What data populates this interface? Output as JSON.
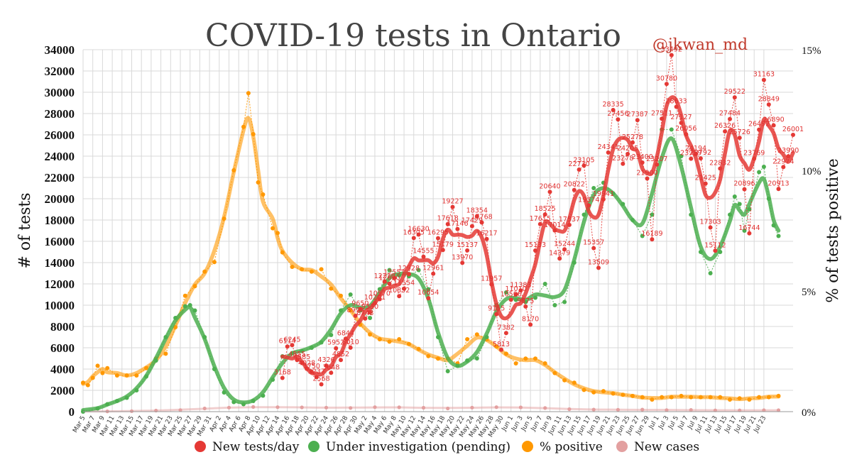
{
  "chart_data": {
    "type": "line",
    "title": "COVID-19 tests in Ontario",
    "subtitle": "@jkwan_md",
    "ylabel": "# of tests",
    "y2label": "% of tests positive",
    "ylim": [
      0,
      34000
    ],
    "y2lim": [
      0,
      15
    ],
    "yticks": [
      0,
      2000,
      4000,
      6000,
      8000,
      10000,
      12000,
      14000,
      16000,
      18000,
      20000,
      22000,
      24000,
      26000,
      28000,
      30000,
      32000,
      34000
    ],
    "y2ticks": [
      {
        "value": 0,
        "label": "0%"
      },
      {
        "value": 5,
        "label": "5%"
      },
      {
        "value": 10,
        "label": "10%"
      },
      {
        "value": 15,
        "label": "15%"
      }
    ],
    "grid": true,
    "legend_position": "bottom",
    "x_tick_labels": [
      "Mar 5",
      "Mar 7",
      "Mar 9",
      "Mar 11",
      "Mar 13",
      "Mar 15",
      "Mar 17",
      "Mar 19",
      "Mar 21",
      "Mar 23",
      "Mar 25",
      "Mar 27",
      "Mar 29",
      "Mar 31",
      "Apr 2",
      "Apr 4",
      "Apr 6",
      "Apr 8",
      "Apr 10",
      "Apr 12",
      "Apr 14",
      "Apr 16",
      "Apr 18",
      "Apr 20",
      "Apr 22",
      "Apr 24",
      "Apr 26",
      "Apr 28",
      "Apr 30",
      "May 2",
      "May 4",
      "May 6",
      "May 8",
      "May 10",
      "May 12",
      "May 14",
      "May 16",
      "May 18",
      "May 20",
      "May 22",
      "May 24",
      "May 26",
      "May 28",
      "May 30",
      "Jun 1",
      "Jun 3",
      "Jun 5",
      "Jun 7",
      "Jun 9",
      "Jun 11",
      "Jun 13",
      "Jun 15",
      "Jun 17",
      "Jun 19",
      "Jun 21",
      "Jun 23",
      "Jun 25",
      "Jun 27",
      "Jun 29",
      "Jul 1",
      "Jul 3",
      "Jul 5",
      "Jul 7",
      "Jul 9",
      "Jul 11",
      "Jul 13",
      "Jul 15",
      "Jul 17",
      "Jul 19",
      "Jul 21",
      "Jul 23"
    ],
    "series": [
      {
        "name": "New tests/day",
        "color": "#e53935",
        "axis": "left",
        "points": [
          [
            46,
            3168
          ],
          [
            47,
            6114
          ],
          [
            48,
            6245
          ],
          [
            49,
            4855
          ],
          [
            50,
            4585
          ],
          [
            51,
            4028
          ],
          [
            52,
            3750
          ],
          [
            53,
            3237
          ],
          [
            54,
            2568
          ],
          [
            55,
            4326
          ],
          [
            56,
            3648
          ],
          [
            57,
            5952
          ],
          [
            58,
            4852
          ],
          [
            59,
            6844
          ],
          [
            60,
            6010
          ],
          [
            61,
            8999
          ],
          [
            62,
            9650
          ],
          [
            63,
            8743
          ],
          [
            64,
            9330
          ],
          [
            65,
            10201
          ],
          [
            66,
            10570
          ],
          [
            67,
            12210
          ],
          [
            68,
            12020
          ],
          [
            69,
            12551
          ],
          [
            70,
            10852
          ],
          [
            71,
            11554
          ],
          [
            72,
            12928
          ],
          [
            73,
            16305
          ],
          [
            74,
            16630
          ],
          [
            75,
            14555
          ],
          [
            76,
            10654
          ],
          [
            77,
            12961
          ],
          [
            78,
            16295
          ],
          [
            79,
            15179
          ],
          [
            80,
            17618
          ],
          [
            81,
            19227
          ],
          [
            82,
            17146
          ],
          [
            83,
            13970
          ],
          [
            84,
            15137
          ],
          [
            85,
            17429
          ],
          [
            86,
            18354
          ],
          [
            87,
            17768
          ],
          [
            88,
            16217
          ],
          [
            89,
            11957
          ],
          [
            90,
            9155
          ],
          [
            91,
            5813
          ],
          [
            92,
            7382
          ],
          [
            93,
            10506
          ],
          [
            94,
            11010
          ],
          [
            95,
            11383
          ],
          [
            96,
            9875
          ],
          [
            97,
            8170
          ],
          [
            98,
            15133
          ],
          [
            99,
            17615
          ],
          [
            100,
            18525
          ],
          [
            101,
            20640
          ],
          [
            102,
            17014
          ],
          [
            103,
            14379
          ],
          [
            104,
            15244
          ],
          [
            105,
            17537
          ],
          [
            106,
            20822
          ],
          [
            107,
            22730
          ],
          [
            108,
            23105
          ],
          [
            109,
            19374
          ],
          [
            110,
            15357
          ],
          [
            111,
            13509
          ],
          [
            112,
            19941
          ],
          [
            113,
            24341
          ],
          [
            114,
            28335
          ],
          [
            115,
            27456
          ],
          [
            116,
            23278
          ],
          [
            117,
            24205
          ],
          [
            118,
            25278
          ],
          [
            119,
            27387
          ],
          [
            120,
            23400
          ],
          [
            121,
            21900
          ],
          [
            122,
            16189
          ],
          [
            123,
            23207
          ],
          [
            124,
            27511
          ],
          [
            125,
            30780
          ],
          [
            126,
            33492
          ],
          [
            127,
            28633
          ],
          [
            128,
            27127
          ],
          [
            129,
            26056
          ],
          [
            130,
            23759
          ],
          [
            131,
            24194
          ],
          [
            132,
            23792
          ],
          [
            133,
            21425
          ],
          [
            134,
            17303
          ],
          [
            135,
            15112
          ],
          [
            136,
            22832
          ],
          [
            137,
            26326
          ],
          [
            138,
            27484
          ],
          [
            139,
            29522
          ],
          [
            140,
            25726
          ],
          [
            141,
            20896
          ],
          [
            142,
            16744
          ],
          [
            143,
            23769
          ],
          [
            144,
            26492
          ],
          [
            145,
            31163
          ],
          [
            146,
            28849
          ],
          [
            147,
            26890
          ],
          [
            148,
            20913
          ],
          [
            149,
            22974
          ],
          [
            150,
            23990
          ],
          [
            151,
            26001
          ]
        ]
      },
      {
        "name": "Under investigation (pending)",
        "color": "#4caf50",
        "axis": "left",
        "points": [
          [
            5,
            0
          ],
          [
            8,
            300
          ],
          [
            10,
            700
          ],
          [
            12,
            1000
          ],
          [
            14,
            1300
          ],
          [
            16,
            2000
          ],
          [
            18,
            3300
          ],
          [
            20,
            4800
          ],
          [
            22,
            7000
          ],
          [
            24,
            8800
          ],
          [
            26,
            9900
          ],
          [
            27,
            10000
          ],
          [
            28,
            9500
          ],
          [
            30,
            7000
          ],
          [
            32,
            4000
          ],
          [
            34,
            1800
          ],
          [
            36,
            900
          ],
          [
            38,
            700
          ],
          [
            40,
            1000
          ],
          [
            42,
            1500
          ],
          [
            44,
            3000
          ],
          [
            46,
            5200
          ],
          [
            48,
            5500
          ],
          [
            50,
            5700
          ],
          [
            52,
            6000
          ],
          [
            54,
            6500
          ],
          [
            56,
            7200
          ],
          [
            58,
            9500
          ],
          [
            60,
            11000
          ],
          [
            62,
            9500
          ],
          [
            64,
            8800
          ],
          [
            66,
            11500
          ],
          [
            68,
            13300
          ],
          [
            70,
            12800
          ],
          [
            72,
            12700
          ],
          [
            74,
            13300
          ],
          [
            76,
            11500
          ],
          [
            78,
            7000
          ],
          [
            80,
            3800
          ],
          [
            82,
            4300
          ],
          [
            84,
            4800
          ],
          [
            86,
            5000
          ],
          [
            88,
            7000
          ],
          [
            90,
            10000
          ],
          [
            92,
            11200
          ],
          [
            94,
            10500
          ],
          [
            96,
            10300
          ],
          [
            98,
            10700
          ],
          [
            100,
            12000
          ],
          [
            102,
            10000
          ],
          [
            104,
            10300
          ],
          [
            106,
            14000
          ],
          [
            108,
            18500
          ],
          [
            110,
            21000
          ],
          [
            112,
            21500
          ],
          [
            114,
            20500
          ],
          [
            116,
            19500
          ],
          [
            118,
            18000
          ],
          [
            120,
            16500
          ],
          [
            122,
            18500
          ],
          [
            124,
            26500
          ],
          [
            126,
            26500
          ],
          [
            128,
            24000
          ],
          [
            130,
            18500
          ],
          [
            132,
            15000
          ],
          [
            134,
            13000
          ],
          [
            136,
            15000
          ],
          [
            138,
            18500
          ],
          [
            139,
            20200
          ],
          [
            140,
            19500
          ],
          [
            141,
            17000
          ],
          [
            142,
            19000
          ],
          [
            144,
            22500
          ],
          [
            145,
            23000
          ],
          [
            146,
            20000
          ],
          [
            147,
            17500
          ],
          [
            148,
            16500
          ]
        ]
      },
      {
        "name": "% positive",
        "color": "#ff9800",
        "axis": "right",
        "points": [
          [
            5,
            1.2
          ],
          [
            6,
            1.1
          ],
          [
            7,
            1.4
          ],
          [
            8,
            1.9
          ],
          [
            9,
            1.6
          ],
          [
            10,
            1.8
          ],
          [
            12,
            1.5
          ],
          [
            14,
            1.5
          ],
          [
            16,
            1.5
          ],
          [
            18,
            1.8
          ],
          [
            20,
            2.2
          ],
          [
            22,
            2.4
          ],
          [
            24,
            3.5
          ],
          [
            26,
            4.8
          ],
          [
            28,
            5.2
          ],
          [
            30,
            5.8
          ],
          [
            32,
            6.2
          ],
          [
            34,
            8.0
          ],
          [
            36,
            10.0
          ],
          [
            38,
            11.8
          ],
          [
            39,
            13.2
          ],
          [
            40,
            11.5
          ],
          [
            41,
            9.5
          ],
          [
            42,
            9.0
          ],
          [
            44,
            7.6
          ],
          [
            45,
            7.4
          ],
          [
            46,
            6.6
          ],
          [
            48,
            6.0
          ],
          [
            50,
            5.9
          ],
          [
            52,
            5.8
          ],
          [
            54,
            5.9
          ],
          [
            56,
            5.1
          ],
          [
            58,
            4.8
          ],
          [
            60,
            4.2
          ],
          [
            62,
            3.6
          ],
          [
            64,
            3.2
          ],
          [
            66,
            3.0
          ],
          [
            68,
            2.9
          ],
          [
            70,
            3.0
          ],
          [
            72,
            2.8
          ],
          [
            74,
            2.6
          ],
          [
            76,
            2.3
          ],
          [
            78,
            2.2
          ],
          [
            80,
            2.2
          ],
          [
            82,
            2.0
          ],
          [
            84,
            3.0
          ],
          [
            86,
            3.2
          ],
          [
            88,
            3.0
          ],
          [
            90,
            2.7
          ],
          [
            92,
            2.4
          ],
          [
            94,
            2.0
          ],
          [
            96,
            2.2
          ],
          [
            98,
            2.2
          ],
          [
            100,
            2.0
          ],
          [
            102,
            1.6
          ],
          [
            104,
            1.3
          ],
          [
            106,
            1.2
          ],
          [
            108,
            0.9
          ],
          [
            110,
            0.8
          ],
          [
            112,
            0.85
          ],
          [
            114,
            0.75
          ],
          [
            116,
            0.7
          ],
          [
            118,
            0.65
          ],
          [
            120,
            0.6
          ],
          [
            122,
            0.5
          ],
          [
            124,
            0.6
          ],
          [
            126,
            0.6
          ],
          [
            128,
            0.65
          ],
          [
            130,
            0.6
          ],
          [
            132,
            0.6
          ],
          [
            134,
            0.6
          ],
          [
            136,
            0.6
          ],
          [
            138,
            0.5
          ],
          [
            140,
            0.55
          ],
          [
            142,
            0.5
          ],
          [
            144,
            0.6
          ],
          [
            146,
            0.6
          ],
          [
            148,
            0.65
          ]
        ]
      },
      {
        "name": "New cases",
        "color": "#e3a0a0",
        "axis": "left",
        "points": [
          [
            5,
            10
          ],
          [
            10,
            25
          ],
          [
            15,
            50
          ],
          [
            20,
            100
          ],
          [
            25,
            150
          ],
          [
            30,
            300
          ],
          [
            35,
            380
          ],
          [
            40,
            440
          ],
          [
            45,
            420
          ],
          [
            50,
            400
          ],
          [
            55,
            380
          ],
          [
            60,
            350
          ],
          [
            65,
            420
          ],
          [
            70,
            410
          ],
          [
            75,
            370
          ],
          [
            80,
            300
          ],
          [
            85,
            380
          ],
          [
            90,
            420
          ],
          [
            95,
            400
          ],
          [
            100,
            340
          ],
          [
            105,
            230
          ],
          [
            110,
            190
          ],
          [
            115,
            180
          ],
          [
            120,
            190
          ],
          [
            125,
            140
          ],
          [
            130,
            160
          ],
          [
            135,
            120
          ],
          [
            140,
            120
          ],
          [
            145,
            130
          ],
          [
            148,
            130
          ]
        ]
      }
    ]
  },
  "legend": {
    "items": [
      {
        "label": "New tests/day",
        "color": "#e53935"
      },
      {
        "label": "Under investigation (pending)",
        "color": "#4caf50"
      },
      {
        "label": "% positive",
        "color": "#ff9800"
      },
      {
        "label": "New cases",
        "color": "#e3a0a0"
      }
    ]
  }
}
